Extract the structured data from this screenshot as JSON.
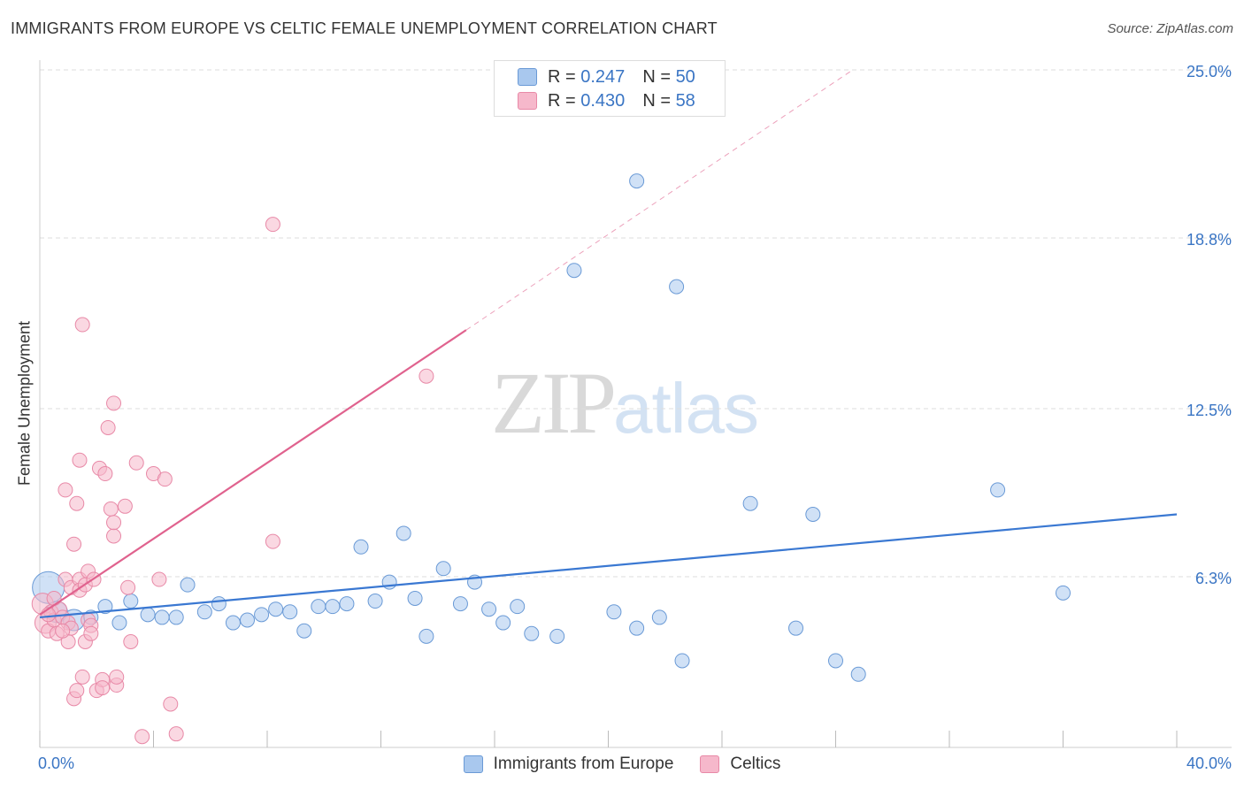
{
  "title": "IMMIGRANTS FROM EUROPE VS CELTIC FEMALE UNEMPLOYMENT CORRELATION CHART",
  "source": "Source: ZipAtlas.com",
  "watermark": {
    "part1": "ZIP",
    "part2": "atlas"
  },
  "legend": {
    "rows": [
      {
        "r_label": "R =",
        "r_value": "0.247",
        "n_label": "N =",
        "n_value": "50",
        "color": "#a9c8ee"
      },
      {
        "r_label": "R =",
        "r_value": "0.430",
        "n_label": "N =",
        "n_value": "58",
        "color": "#f6b8cb"
      }
    ]
  },
  "bottom_legend": [
    {
      "label": "Immigrants from Europe",
      "color": "#a9c8ee"
    },
    {
      "label": "Celtics",
      "color": "#f6b8cb"
    }
  ],
  "chart_data": {
    "type": "scatter",
    "ylabel": "Female Unemployment",
    "xlabel": "",
    "xlim": [
      0,
      40
    ],
    "ylim": [
      0,
      25.0
    ],
    "x_tick_labels": [
      "0.0%",
      "40.0%"
    ],
    "y_tick_values": [
      6.3,
      12.5,
      18.8,
      25.0
    ],
    "y_tick_labels": [
      "6.3%",
      "12.5%",
      "18.8%",
      "25.0%"
    ],
    "series": [
      {
        "name": "Immigrants from Europe",
        "color": "#a9c8ee",
        "edge": "#6a9ad6",
        "line_color": "#3a78d2",
        "trend": {
          "x": [
            0,
            40
          ],
          "y": [
            4.8,
            8.6
          ],
          "style": "solid"
        },
        "points": [
          {
            "x": 0.3,
            "y": 5.9,
            "s": 3
          },
          {
            "x": 0.6,
            "y": 5.0,
            "s": 2
          },
          {
            "x": 1.2,
            "y": 4.7,
            "s": 2
          },
          {
            "x": 1.8,
            "y": 4.8,
            "s": 1
          },
          {
            "x": 2.3,
            "y": 5.2,
            "s": 1
          },
          {
            "x": 2.8,
            "y": 4.6,
            "s": 1
          },
          {
            "x": 3.2,
            "y": 5.4,
            "s": 1
          },
          {
            "x": 3.8,
            "y": 4.9,
            "s": 1
          },
          {
            "x": 4.3,
            "y": 4.8,
            "s": 1
          },
          {
            "x": 4.8,
            "y": 4.8,
            "s": 1
          },
          {
            "x": 5.2,
            "y": 6.0,
            "s": 1
          },
          {
            "x": 5.8,
            "y": 5.0,
            "s": 1
          },
          {
            "x": 6.3,
            "y": 5.3,
            "s": 1
          },
          {
            "x": 6.8,
            "y": 4.6,
            "s": 1
          },
          {
            "x": 7.3,
            "y": 4.7,
            "s": 1
          },
          {
            "x": 7.8,
            "y": 4.9,
            "s": 1
          },
          {
            "x": 8.3,
            "y": 5.1,
            "s": 1
          },
          {
            "x": 8.8,
            "y": 5.0,
            "s": 1
          },
          {
            "x": 9.3,
            "y": 4.3,
            "s": 1
          },
          {
            "x": 9.8,
            "y": 5.2,
            "s": 1
          },
          {
            "x": 10.3,
            "y": 5.2,
            "s": 1
          },
          {
            "x": 10.8,
            "y": 5.3,
            "s": 1
          },
          {
            "x": 11.3,
            "y": 7.4,
            "s": 1
          },
          {
            "x": 11.8,
            "y": 5.4,
            "s": 1
          },
          {
            "x": 12.3,
            "y": 6.1,
            "s": 1
          },
          {
            "x": 12.8,
            "y": 7.9,
            "s": 1
          },
          {
            "x": 13.2,
            "y": 5.5,
            "s": 1
          },
          {
            "x": 13.6,
            "y": 4.1,
            "s": 1
          },
          {
            "x": 14.2,
            "y": 6.6,
            "s": 1
          },
          {
            "x": 14.8,
            "y": 5.3,
            "s": 1
          },
          {
            "x": 15.3,
            "y": 6.1,
            "s": 1
          },
          {
            "x": 15.8,
            "y": 5.1,
            "s": 1
          },
          {
            "x": 16.3,
            "y": 4.6,
            "s": 1
          },
          {
            "x": 16.8,
            "y": 5.2,
            "s": 1
          },
          {
            "x": 17.3,
            "y": 4.2,
            "s": 1
          },
          {
            "x": 18.2,
            "y": 4.1,
            "s": 1
          },
          {
            "x": 18.8,
            "y": 17.6,
            "s": 1
          },
          {
            "x": 20.2,
            "y": 5.0,
            "s": 1
          },
          {
            "x": 21.0,
            "y": 20.9,
            "s": 1
          },
          {
            "x": 21.0,
            "y": 4.4,
            "s": 1
          },
          {
            "x": 21.8,
            "y": 4.8,
            "s": 1
          },
          {
            "x": 22.4,
            "y": 17.0,
            "s": 1
          },
          {
            "x": 22.6,
            "y": 3.2,
            "s": 1
          },
          {
            "x": 25.0,
            "y": 9.0,
            "s": 1
          },
          {
            "x": 26.6,
            "y": 4.4,
            "s": 1
          },
          {
            "x": 27.2,
            "y": 8.6,
            "s": 1
          },
          {
            "x": 28.0,
            "y": 3.2,
            "s": 1
          },
          {
            "x": 28.8,
            "y": 2.7,
            "s": 1
          },
          {
            "x": 33.7,
            "y": 9.5,
            "s": 1
          },
          {
            "x": 36.0,
            "y": 5.7,
            "s": 1
          }
        ]
      },
      {
        "name": "Celtics",
        "color": "#f6b8cb",
        "edge": "#e889a7",
        "line_color": "#e0628e",
        "trend": {
          "x": [
            0,
            15.0
          ],
          "y": [
            4.9,
            15.4
          ],
          "style": "solid",
          "extended_to": [
            28.6,
            25.0
          ],
          "extended_style": "dashed"
        },
        "points": [
          {
            "x": 0.1,
            "y": 5.3,
            "s": 2
          },
          {
            "x": 0.2,
            "y": 4.6,
            "s": 2
          },
          {
            "x": 0.3,
            "y": 4.3,
            "s": 1
          },
          {
            "x": 0.4,
            "y": 5.0,
            "s": 1
          },
          {
            "x": 0.5,
            "y": 4.7,
            "s": 1
          },
          {
            "x": 0.6,
            "y": 4.2,
            "s": 1
          },
          {
            "x": 0.7,
            "y": 5.1,
            "s": 1
          },
          {
            "x": 0.8,
            "y": 4.8,
            "s": 1
          },
          {
            "x": 0.9,
            "y": 6.2,
            "s": 1
          },
          {
            "x": 1.0,
            "y": 4.6,
            "s": 1
          },
          {
            "x": 1.0,
            "y": 3.9,
            "s": 1
          },
          {
            "x": 0.9,
            "y": 9.5,
            "s": 1
          },
          {
            "x": 1.1,
            "y": 4.4,
            "s": 1
          },
          {
            "x": 1.1,
            "y": 5.9,
            "s": 1
          },
          {
            "x": 1.2,
            "y": 1.8,
            "s": 1
          },
          {
            "x": 1.2,
            "y": 7.5,
            "s": 1
          },
          {
            "x": 1.3,
            "y": 9.0,
            "s": 1
          },
          {
            "x": 1.3,
            "y": 2.1,
            "s": 1
          },
          {
            "x": 1.4,
            "y": 6.2,
            "s": 1
          },
          {
            "x": 1.5,
            "y": 2.6,
            "s": 1
          },
          {
            "x": 1.4,
            "y": 5.8,
            "s": 1
          },
          {
            "x": 1.6,
            "y": 6.0,
            "s": 1
          },
          {
            "x": 1.4,
            "y": 10.6,
            "s": 1
          },
          {
            "x": 1.5,
            "y": 15.6,
            "s": 1
          },
          {
            "x": 1.6,
            "y": 3.9,
            "s": 1
          },
          {
            "x": 1.7,
            "y": 4.7,
            "s": 1
          },
          {
            "x": 1.7,
            "y": 6.5,
            "s": 1
          },
          {
            "x": 1.8,
            "y": 4.5,
            "s": 1
          },
          {
            "x": 1.8,
            "y": 4.2,
            "s": 1
          },
          {
            "x": 1.9,
            "y": 6.2,
            "s": 1
          },
          {
            "x": 2.0,
            "y": 2.1,
            "s": 1
          },
          {
            "x": 2.1,
            "y": 10.3,
            "s": 1
          },
          {
            "x": 2.2,
            "y": 2.5,
            "s": 1
          },
          {
            "x": 2.2,
            "y": 2.2,
            "s": 1
          },
          {
            "x": 2.3,
            "y": 10.1,
            "s": 1
          },
          {
            "x": 2.4,
            "y": 11.8,
            "s": 1
          },
          {
            "x": 2.5,
            "y": 8.8,
            "s": 1
          },
          {
            "x": 2.6,
            "y": 12.7,
            "s": 1
          },
          {
            "x": 2.6,
            "y": 7.8,
            "s": 1
          },
          {
            "x": 2.6,
            "y": 8.3,
            "s": 1
          },
          {
            "x": 2.7,
            "y": 2.3,
            "s": 1
          },
          {
            "x": 2.7,
            "y": 2.6,
            "s": 1
          },
          {
            "x": 3.0,
            "y": 8.9,
            "s": 1
          },
          {
            "x": 3.1,
            "y": 5.9,
            "s": 1
          },
          {
            "x": 3.2,
            "y": 3.9,
            "s": 1
          },
          {
            "x": 3.4,
            "y": 10.5,
            "s": 1
          },
          {
            "x": 3.6,
            "y": 0.4,
            "s": 1
          },
          {
            "x": 4.0,
            "y": 10.1,
            "s": 1
          },
          {
            "x": 4.2,
            "y": 6.2,
            "s": 1
          },
          {
            "x": 4.4,
            "y": 9.9,
            "s": 1
          },
          {
            "x": 4.6,
            "y": 1.6,
            "s": 1
          },
          {
            "x": 4.8,
            "y": 0.5,
            "s": 1
          },
          {
            "x": 8.2,
            "y": 19.3,
            "s": 1
          },
          {
            "x": 8.2,
            "y": 7.6,
            "s": 1
          },
          {
            "x": 13.6,
            "y": 13.7,
            "s": 1
          },
          {
            "x": 0.3,
            "y": 4.9,
            "s": 1
          },
          {
            "x": 0.5,
            "y": 5.5,
            "s": 1
          },
          {
            "x": 0.8,
            "y": 4.3,
            "s": 1
          }
        ]
      }
    ]
  }
}
